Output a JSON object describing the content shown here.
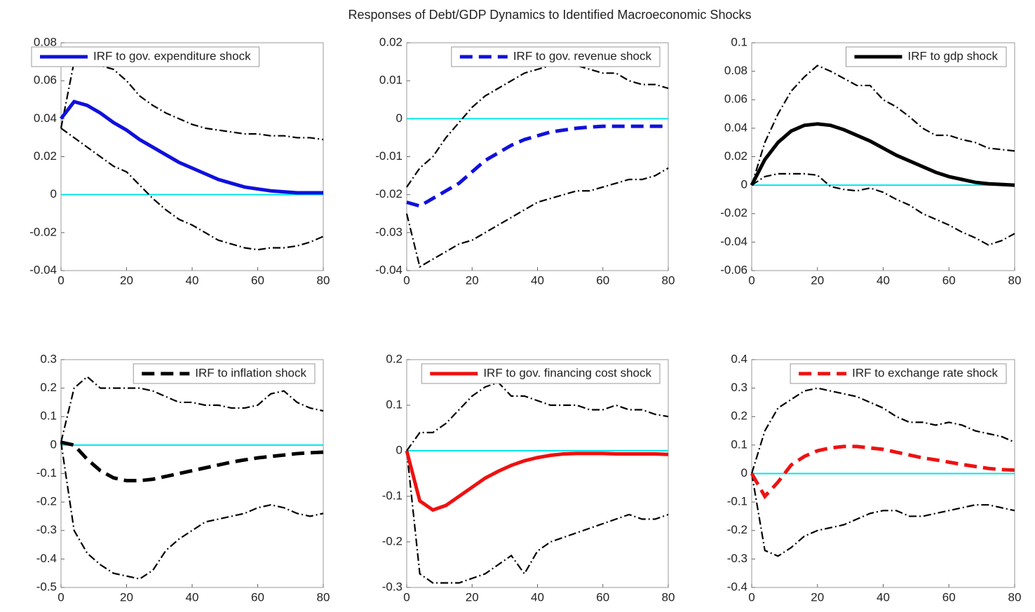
{
  "title": "Responses of Debt/GDP Dynamics to Identified Macroeconomic Shocks",
  "chart_data": [
    {
      "type": "line",
      "legend": "upper left",
      "zero_line_color": "#00e5ee",
      "x": [
        0,
        4,
        8,
        12,
        16,
        20,
        24,
        28,
        32,
        36,
        40,
        44,
        48,
        52,
        56,
        60,
        64,
        68,
        72,
        76,
        80
      ],
      "xlim": [
        0,
        80
      ],
      "xticks": [
        0,
        20,
        40,
        60,
        80
      ],
      "ylim": [
        -0.04,
        0.08
      ],
      "yticks": [
        -0.04,
        -0.02,
        0,
        0.02,
        0.04,
        0.06,
        0.08
      ],
      "series": [
        {
          "name": "IRF to gov. expenditure shock",
          "color": "#1010dd",
          "dash": "solid",
          "values": [
            0.04,
            0.049,
            0.047,
            0.043,
            0.038,
            0.034,
            0.029,
            0.025,
            0.021,
            0.017,
            0.014,
            0.011,
            0.008,
            0.006,
            0.004,
            0.003,
            0.002,
            0.0015,
            0.001,
            0.001,
            0.001
          ]
        },
        {
          "color": "#000000",
          "dash": "dashdot",
          "values": [
            0.035,
            0.07,
            0.072,
            0.068,
            0.066,
            0.06,
            0.052,
            0.047,
            0.043,
            0.04,
            0.037,
            0.035,
            0.034,
            0.033,
            0.032,
            0.032,
            0.031,
            0.031,
            0.03,
            0.03,
            0.029
          ]
        },
        {
          "color": "#000000",
          "dash": "dashdot",
          "values": [
            0.035,
            0.03,
            0.025,
            0.02,
            0.015,
            0.012,
            0.005,
            -0.002,
            -0.008,
            -0.013,
            -0.016,
            -0.02,
            -0.024,
            -0.026,
            -0.028,
            -0.029,
            -0.028,
            -0.028,
            -0.027,
            -0.025,
            -0.022
          ]
        }
      ]
    },
    {
      "type": "line",
      "legend": "upper right",
      "zero_line_color": "#00e5ee",
      "x": [
        0,
        4,
        8,
        12,
        16,
        20,
        24,
        28,
        32,
        36,
        40,
        44,
        48,
        52,
        56,
        60,
        64,
        68,
        72,
        76,
        80
      ],
      "xlim": [
        0,
        80
      ],
      "xticks": [
        0,
        20,
        40,
        60,
        80
      ],
      "ylim": [
        -0.04,
        0.02
      ],
      "yticks": [
        -0.04,
        -0.03,
        -0.02,
        -0.01,
        0,
        0.01,
        0.02
      ],
      "series": [
        {
          "name": "IRF to gov. revenue shock",
          "color": "#1010dd",
          "dash": "dash",
          "values": [
            -0.022,
            -0.023,
            -0.021,
            -0.019,
            -0.017,
            -0.014,
            -0.011,
            -0.009,
            -0.007,
            -0.0055,
            -0.0045,
            -0.0035,
            -0.003,
            -0.0025,
            -0.0022,
            -0.002,
            -0.002,
            -0.002,
            -0.002,
            -0.002,
            -0.002
          ]
        },
        {
          "color": "#000000",
          "dash": "dashdot",
          "values": [
            -0.018,
            -0.013,
            -0.01,
            -0.005,
            -0.001,
            0.003,
            0.006,
            0.008,
            0.01,
            0.012,
            0.013,
            0.014,
            0.014,
            0.014,
            0.013,
            0.012,
            0.012,
            0.01,
            0.009,
            0.009,
            0.008
          ]
        },
        {
          "color": "#000000",
          "dash": "dashdot",
          "values": [
            -0.025,
            -0.039,
            -0.037,
            -0.035,
            -0.033,
            -0.032,
            -0.03,
            -0.028,
            -0.026,
            -0.024,
            -0.022,
            -0.021,
            -0.02,
            -0.019,
            -0.019,
            -0.018,
            -0.017,
            -0.016,
            -0.016,
            -0.015,
            -0.013
          ]
        }
      ]
    },
    {
      "type": "line",
      "legend": "upper right",
      "zero_line_color": "#00e5ee",
      "x": [
        0,
        4,
        8,
        12,
        16,
        20,
        24,
        28,
        32,
        36,
        40,
        44,
        48,
        52,
        56,
        60,
        64,
        68,
        72,
        76,
        80
      ],
      "xlim": [
        0,
        80
      ],
      "xticks": [
        0,
        20,
        40,
        60,
        80
      ],
      "ylim": [
        -0.06,
        0.1
      ],
      "yticks": [
        -0.06,
        -0.04,
        -0.02,
        0,
        0.02,
        0.04,
        0.06,
        0.08,
        0.1
      ],
      "series": [
        {
          "name": "IRF to gdp shock",
          "color": "#000000",
          "dash": "solid",
          "values": [
            0,
            0.018,
            0.03,
            0.038,
            0.042,
            0.043,
            0.042,
            0.039,
            0.035,
            0.031,
            0.026,
            0.021,
            0.017,
            0.013,
            0.009,
            0.006,
            0.004,
            0.002,
            0.001,
            0.0005,
            0
          ]
        },
        {
          "color": "#000000",
          "dash": "dashdot",
          "values": [
            0,
            0.03,
            0.05,
            0.066,
            0.076,
            0.084,
            0.08,
            0.075,
            0.07,
            0.07,
            0.06,
            0.055,
            0.048,
            0.04,
            0.035,
            0.035,
            0.032,
            0.03,
            0.026,
            0.025,
            0.024
          ]
        },
        {
          "color": "#000000",
          "dash": "dashdot",
          "values": [
            0,
            0.006,
            0.008,
            0.008,
            0.008,
            0.007,
            -0.001,
            -0.003,
            -0.004,
            -0.002,
            -0.005,
            -0.01,
            -0.014,
            -0.02,
            -0.024,
            -0.028,
            -0.033,
            -0.037,
            -0.042,
            -0.039,
            -0.034
          ]
        }
      ]
    },
    {
      "type": "line",
      "legend": "upper right",
      "zero_line_color": "#00e5ee",
      "x": [
        0,
        4,
        8,
        12,
        16,
        20,
        24,
        28,
        32,
        36,
        40,
        44,
        48,
        52,
        56,
        60,
        64,
        68,
        72,
        76,
        80
      ],
      "xlim": [
        0,
        80
      ],
      "xticks": [
        0,
        20,
        40,
        60,
        80
      ],
      "ylim": [
        -0.5,
        0.3
      ],
      "yticks": [
        -0.5,
        -0.4,
        -0.3,
        -0.2,
        -0.1,
        0,
        0.1,
        0.2,
        0.3
      ],
      "series": [
        {
          "name": "IRF to inflation shock",
          "color": "#000000",
          "dash": "dash",
          "values": [
            0.01,
            0,
            -0.05,
            -0.09,
            -0.115,
            -0.125,
            -0.125,
            -0.12,
            -0.11,
            -0.1,
            -0.09,
            -0.08,
            -0.07,
            -0.06,
            -0.052,
            -0.045,
            -0.04,
            -0.035,
            -0.03,
            -0.027,
            -0.025
          ]
        },
        {
          "color": "#000000",
          "dash": "dashdot",
          "values": [
            0.01,
            0.2,
            0.24,
            0.2,
            0.2,
            0.2,
            0.2,
            0.19,
            0.17,
            0.15,
            0.15,
            0.14,
            0.14,
            0.13,
            0.13,
            0.14,
            0.18,
            0.19,
            0.15,
            0.13,
            0.12
          ]
        },
        {
          "color": "#000000",
          "dash": "dashdot",
          "values": [
            0.01,
            -0.3,
            -0.38,
            -0.42,
            -0.45,
            -0.46,
            -0.47,
            -0.44,
            -0.37,
            -0.33,
            -0.3,
            -0.27,
            -0.26,
            -0.25,
            -0.24,
            -0.22,
            -0.21,
            -0.22,
            -0.24,
            -0.25,
            -0.24
          ]
        }
      ]
    },
    {
      "type": "line",
      "legend": "upper right",
      "zero_line_color": "#00e5ee",
      "x": [
        0,
        4,
        8,
        12,
        16,
        20,
        24,
        28,
        32,
        36,
        40,
        44,
        48,
        52,
        56,
        60,
        64,
        68,
        72,
        76,
        80
      ],
      "xlim": [
        0,
        80
      ],
      "xticks": [
        0,
        20,
        40,
        60,
        80
      ],
      "ylim": [
        -0.3,
        0.2
      ],
      "yticks": [
        -0.3,
        -0.2,
        -0.1,
        0,
        0.1,
        0.2
      ],
      "series": [
        {
          "name": "IRF to gov. financing cost shock",
          "color": "#ee1111",
          "dash": "solid",
          "values": [
            0,
            -0.11,
            -0.13,
            -0.12,
            -0.1,
            -0.08,
            -0.06,
            -0.045,
            -0.032,
            -0.022,
            -0.015,
            -0.01,
            -0.007,
            -0.006,
            -0.006,
            -0.006,
            -0.007,
            -0.007,
            -0.007,
            -0.007,
            -0.008
          ]
        },
        {
          "color": "#000000",
          "dash": "dashdot",
          "values": [
            0,
            0.04,
            0.04,
            0.06,
            0.09,
            0.12,
            0.14,
            0.15,
            0.12,
            0.12,
            0.11,
            0.1,
            0.1,
            0.1,
            0.09,
            0.09,
            0.1,
            0.09,
            0.09,
            0.08,
            0.075
          ]
        },
        {
          "color": "#000000",
          "dash": "dashdot",
          "values": [
            0,
            -0.27,
            -0.29,
            -0.29,
            -0.29,
            -0.28,
            -0.27,
            -0.25,
            -0.23,
            -0.27,
            -0.22,
            -0.2,
            -0.19,
            -0.18,
            -0.17,
            -0.16,
            -0.15,
            -0.14,
            -0.15,
            -0.15,
            -0.14
          ]
        }
      ]
    },
    {
      "type": "line",
      "legend": "upper right",
      "zero_line_color": "#00e5ee",
      "x": [
        0,
        4,
        8,
        12,
        16,
        20,
        24,
        28,
        32,
        36,
        40,
        44,
        48,
        52,
        56,
        60,
        64,
        68,
        72,
        76,
        80
      ],
      "xlim": [
        0,
        80
      ],
      "xticks": [
        0,
        20,
        40,
        60,
        80
      ],
      "ylim": [
        -0.4,
        0.4
      ],
      "yticks": [
        -0.4,
        -0.3,
        -0.2,
        -0.1,
        0,
        0.1,
        0.2,
        0.3,
        0.4
      ],
      "series": [
        {
          "name": "IRF to exchange rate shock",
          "color": "#ee1111",
          "dash": "dash",
          "values": [
            0,
            -0.08,
            -0.03,
            0.03,
            0.06,
            0.08,
            0.09,
            0.095,
            0.095,
            0.09,
            0.085,
            0.075,
            0.065,
            0.055,
            0.048,
            0.04,
            0.032,
            0.025,
            0.018,
            0.014,
            0.012
          ]
        },
        {
          "color": "#000000",
          "dash": "dashdot",
          "values": [
            0,
            0.15,
            0.23,
            0.26,
            0.29,
            0.3,
            0.29,
            0.28,
            0.27,
            0.25,
            0.23,
            0.2,
            0.18,
            0.18,
            0.17,
            0.18,
            0.17,
            0.15,
            0.14,
            0.13,
            0.11
          ]
        },
        {
          "color": "#000000",
          "dash": "dashdot",
          "values": [
            0,
            -0.27,
            -0.29,
            -0.26,
            -0.22,
            -0.2,
            -0.19,
            -0.18,
            -0.16,
            -0.14,
            -0.13,
            -0.13,
            -0.15,
            -0.15,
            -0.14,
            -0.13,
            -0.12,
            -0.11,
            -0.11,
            -0.12,
            -0.13
          ]
        }
      ]
    }
  ]
}
